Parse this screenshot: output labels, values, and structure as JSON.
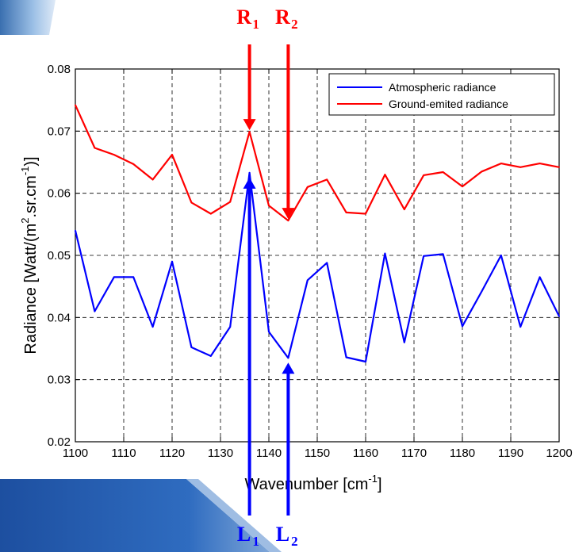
{
  "chart_data": {
    "type": "line",
    "xlabel": "Wavenumber [cm",
    "xlabel_sup": "-1",
    "xlabel_end": "]",
    "ylabel": "Radiance [Watt/(m",
    "ylabel_sup1": "2",
    "ylabel_mid": ".sr.cm",
    "ylabel_sup2": "-1",
    "ylabel_end": ")]",
    "xlim": [
      1100,
      1200
    ],
    "ylim": [
      0.02,
      0.08
    ],
    "xticks": [
      "1100",
      "1110",
      "1120",
      "1130",
      "1140",
      "1150",
      "1160",
      "1170",
      "1180",
      "1190",
      "1200"
    ],
    "yticks": [
      "0.02",
      "0.03",
      "0.04",
      "0.05",
      "0.06",
      "0.07",
      "0.08"
    ],
    "grid": true,
    "legend_position": "top-right",
    "x": [
      1100,
      1104,
      1108,
      1112,
      1116,
      1120,
      1124,
      1128,
      1132,
      1136,
      1140,
      1144,
      1148,
      1152,
      1156,
      1160,
      1164,
      1168,
      1172,
      1176,
      1180,
      1184,
      1188,
      1192,
      1196,
      1200
    ],
    "series": [
      {
        "name": "Atmospheric radiance",
        "color": "#0000ff",
        "values": [
          0.054,
          0.041,
          0.0465,
          0.0465,
          0.0385,
          0.049,
          0.0352,
          0.0338,
          0.0385,
          0.0633,
          0.0377,
          0.0335,
          0.046,
          0.0488,
          0.0336,
          0.0329,
          0.0503,
          0.036,
          0.0499,
          0.0502,
          0.0386,
          0.0442,
          0.05,
          0.0385,
          0.0465,
          0.0402
        ]
      },
      {
        "name": "Ground-emited radiance",
        "color": "#ff0000",
        "values": [
          0.0742,
          0.0673,
          0.0662,
          0.0647,
          0.0622,
          0.0662,
          0.0585,
          0.0567,
          0.0586,
          0.0699,
          0.058,
          0.0556,
          0.061,
          0.0622,
          0.0569,
          0.0567,
          0.063,
          0.0574,
          0.0629,
          0.0634,
          0.0611,
          0.0635,
          0.0648,
          0.0642,
          0.0648,
          0.0642
        ]
      }
    ],
    "annotations": [
      {
        "label": "R",
        "sub": "1",
        "x": 1136,
        "color": "#ff0000",
        "direction": "down"
      },
      {
        "label": "R",
        "sub": "2",
        "x": 1144,
        "color": "#ff0000",
        "direction": "down"
      },
      {
        "label": "L",
        "sub": "1",
        "x": 1136,
        "color": "#0000ff",
        "direction": "up"
      },
      {
        "label": "L",
        "sub": "2",
        "x": 1144,
        "color": "#0000ff",
        "direction": "up"
      }
    ]
  }
}
